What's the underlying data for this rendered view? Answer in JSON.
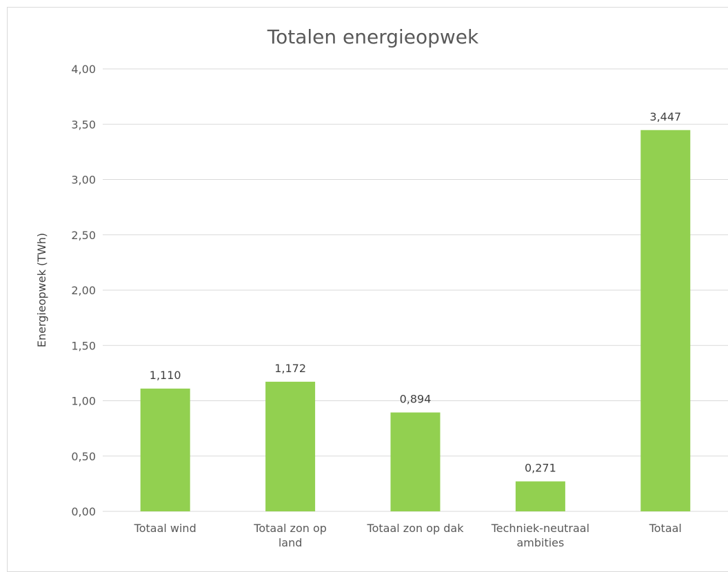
{
  "chart_data": {
    "type": "bar",
    "title": "Totalen energieopwek",
    "xlabel": "",
    "ylabel": "Energieopwek (TWh)",
    "categories": [
      [
        "Totaal wind"
      ],
      [
        "Totaal zon op",
        "land"
      ],
      [
        "Totaal zon op dak"
      ],
      [
        "Techniek-neutraal",
        "ambities"
      ],
      [
        "Totaal"
      ]
    ],
    "values": [
      1.11,
      1.172,
      0.894,
      0.271,
      3.447
    ],
    "value_labels": [
      "1,110",
      "1,172",
      "0,894",
      "0,271",
      "3,447"
    ],
    "ylim": [
      0,
      4
    ],
    "yticks": [
      0,
      0.5,
      1,
      1.5,
      2,
      2.5,
      3,
      3.5,
      4
    ],
    "ytick_labels": [
      "0,00",
      "0,50",
      "1,00",
      "1,50",
      "2,00",
      "2,50",
      "3,00",
      "3,50",
      "4,00"
    ],
    "grid": true,
    "legend": "none",
    "bar_color": "#92d050"
  }
}
